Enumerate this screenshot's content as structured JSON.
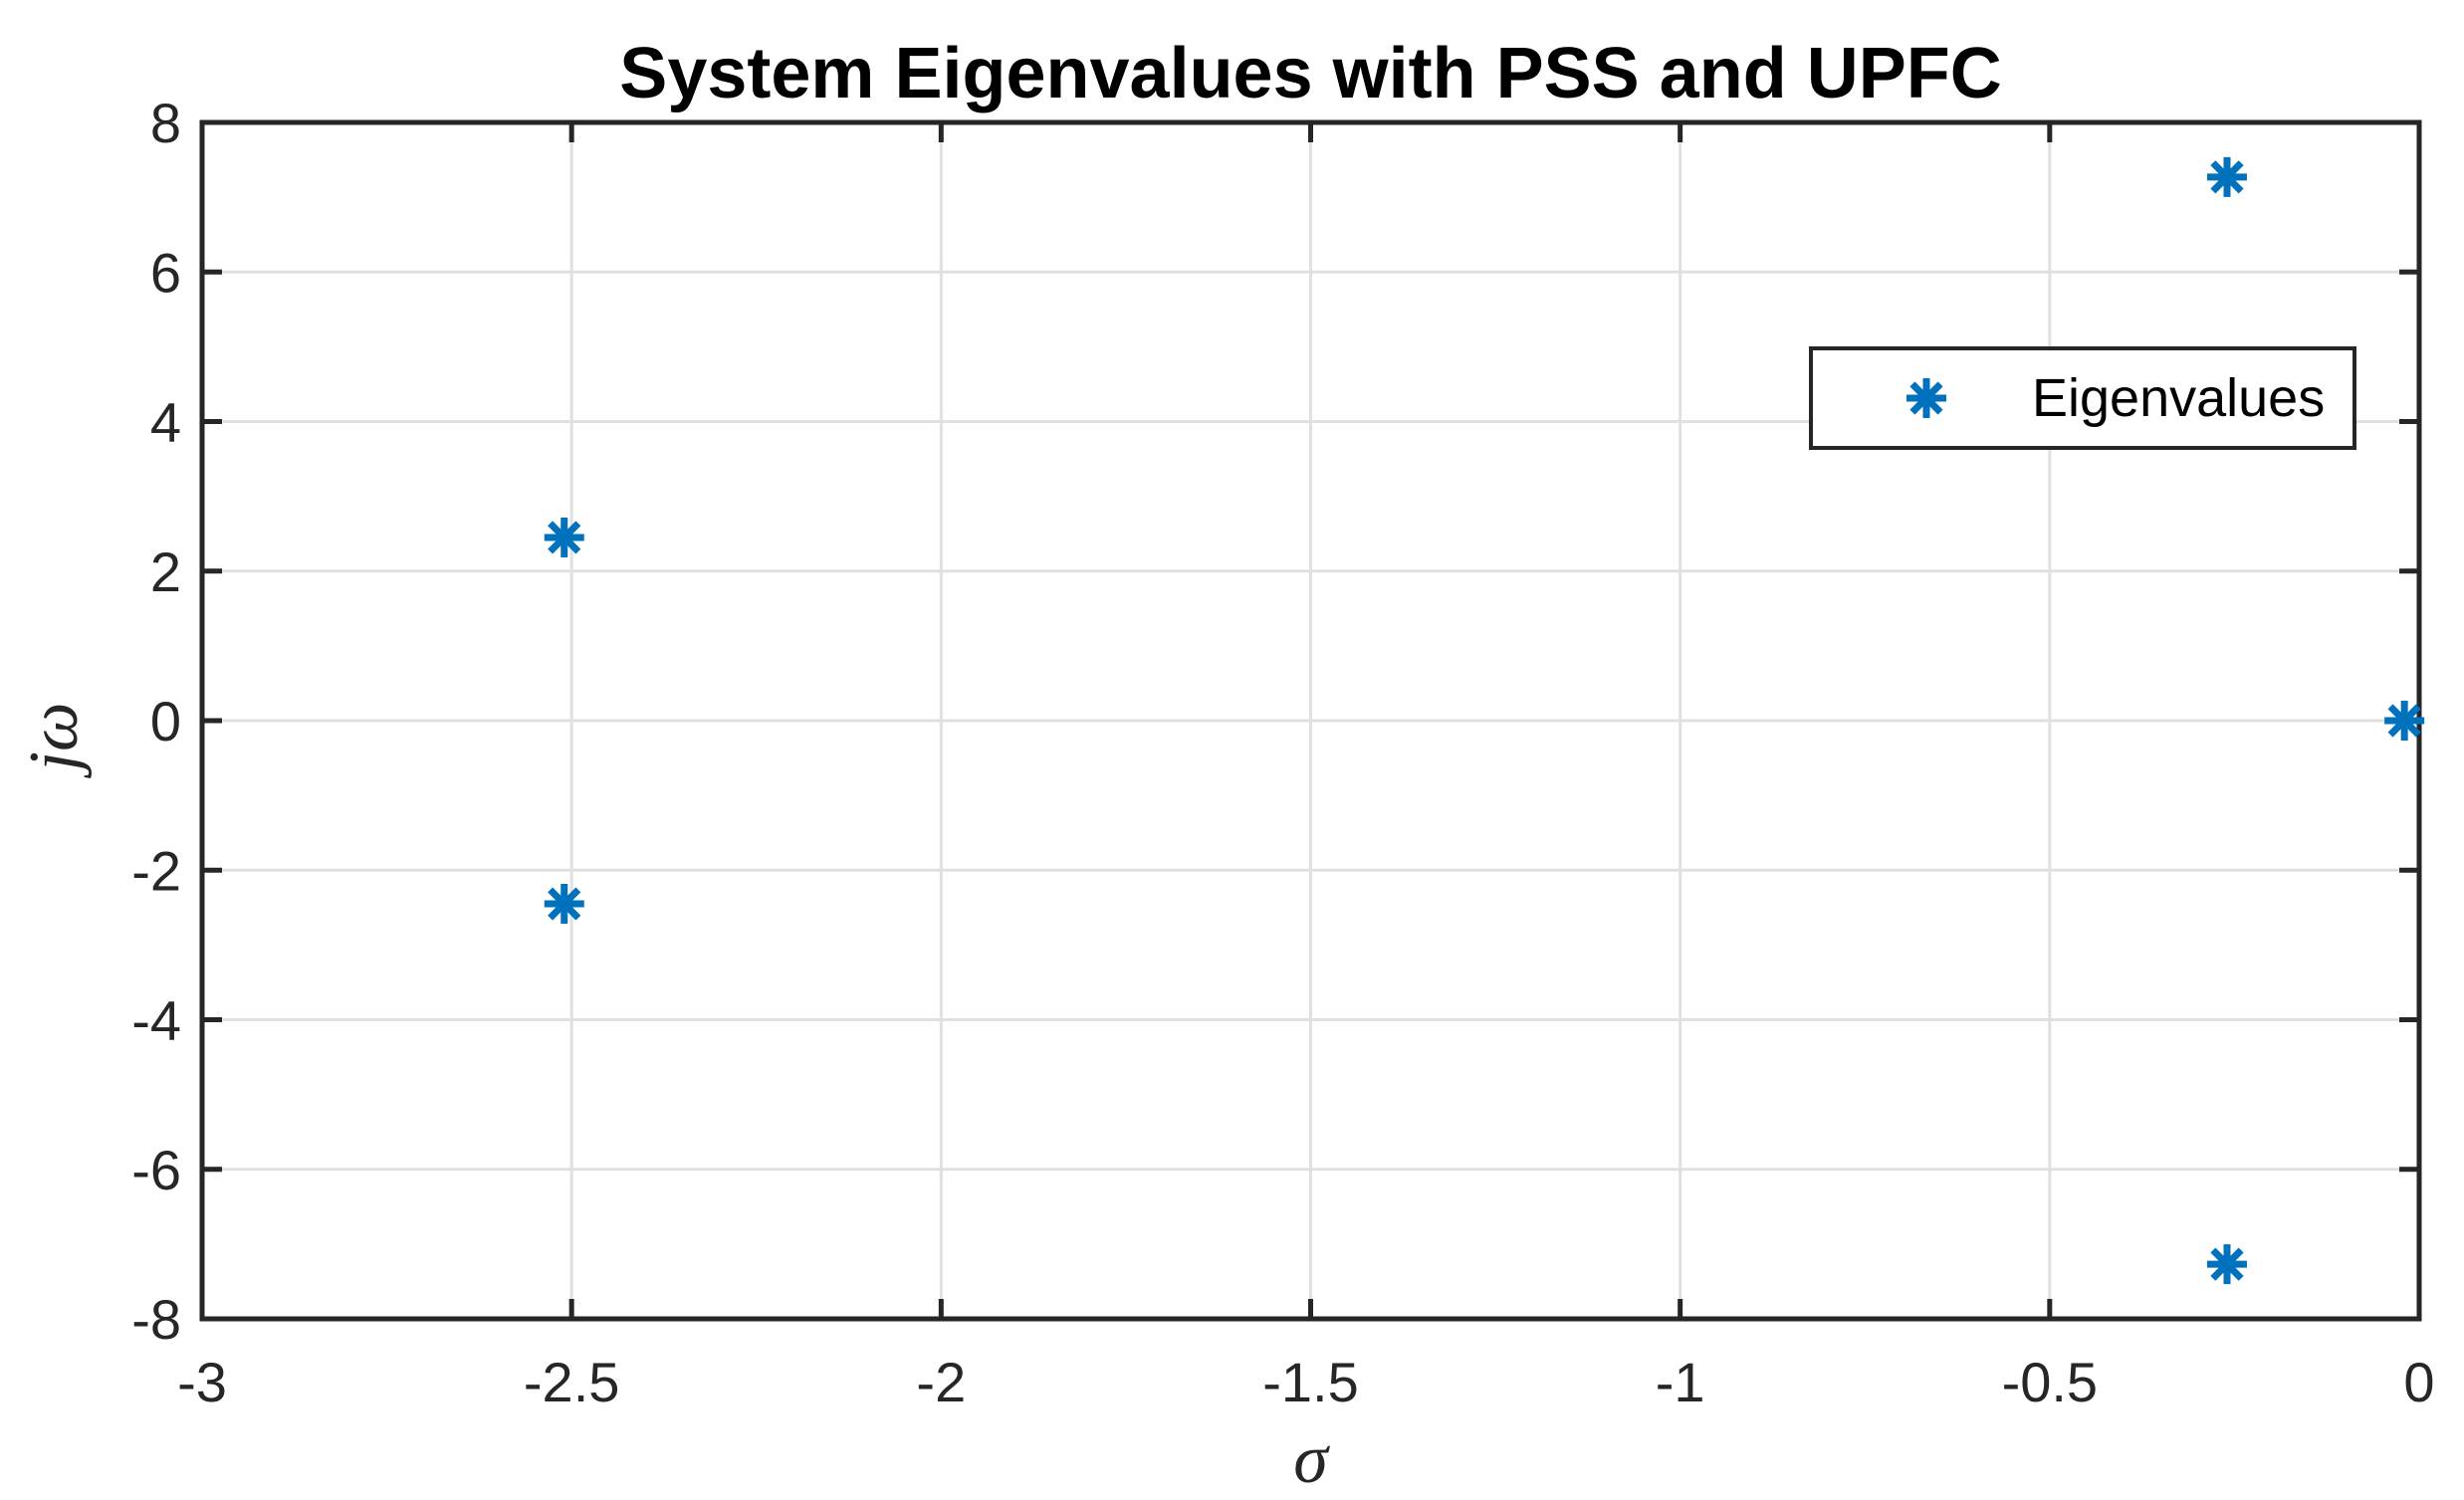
{
  "chart_data": {
    "type": "scatter",
    "title": "System Eigenvalues with PSS and UPFC",
    "xlabel": "σ",
    "ylabel": "jω",
    "xlim": [
      -3,
      0
    ],
    "ylim": [
      -8,
      8
    ],
    "xticks": [
      -3,
      -2.5,
      -2,
      -1.5,
      -1,
      -0.5,
      0
    ],
    "xtick_labels": [
      "-3",
      "-2.5",
      "-2",
      "-1.5",
      "-1",
      "-0.5",
      "0"
    ],
    "yticks": [
      -8,
      -6,
      -4,
      -2,
      0,
      2,
      4,
      6,
      8
    ],
    "ytick_labels": [
      "-8",
      "-6",
      "-4",
      "-2",
      "0",
      "2",
      "4",
      "6",
      "8"
    ],
    "grid": true,
    "legend": {
      "position": "upper-right-inside",
      "entries": [
        "Eigenvalues"
      ]
    },
    "series": [
      {
        "name": "Eigenvalues",
        "marker": "asterisk",
        "color": "#0072BD",
        "points": [
          {
            "sigma": -0.26,
            "jw": 7.27
          },
          {
            "sigma": -2.51,
            "jw": 2.45
          },
          {
            "sigma": -0.02,
            "jw": 0.0
          },
          {
            "sigma": -2.51,
            "jw": -2.45
          },
          {
            "sigma": -0.26,
            "jw": -7.27
          }
        ]
      }
    ],
    "colors": {
      "marker": "#0072BD",
      "axis": "#262626",
      "grid": "#e0e0e0",
      "background": "#ffffff"
    }
  }
}
